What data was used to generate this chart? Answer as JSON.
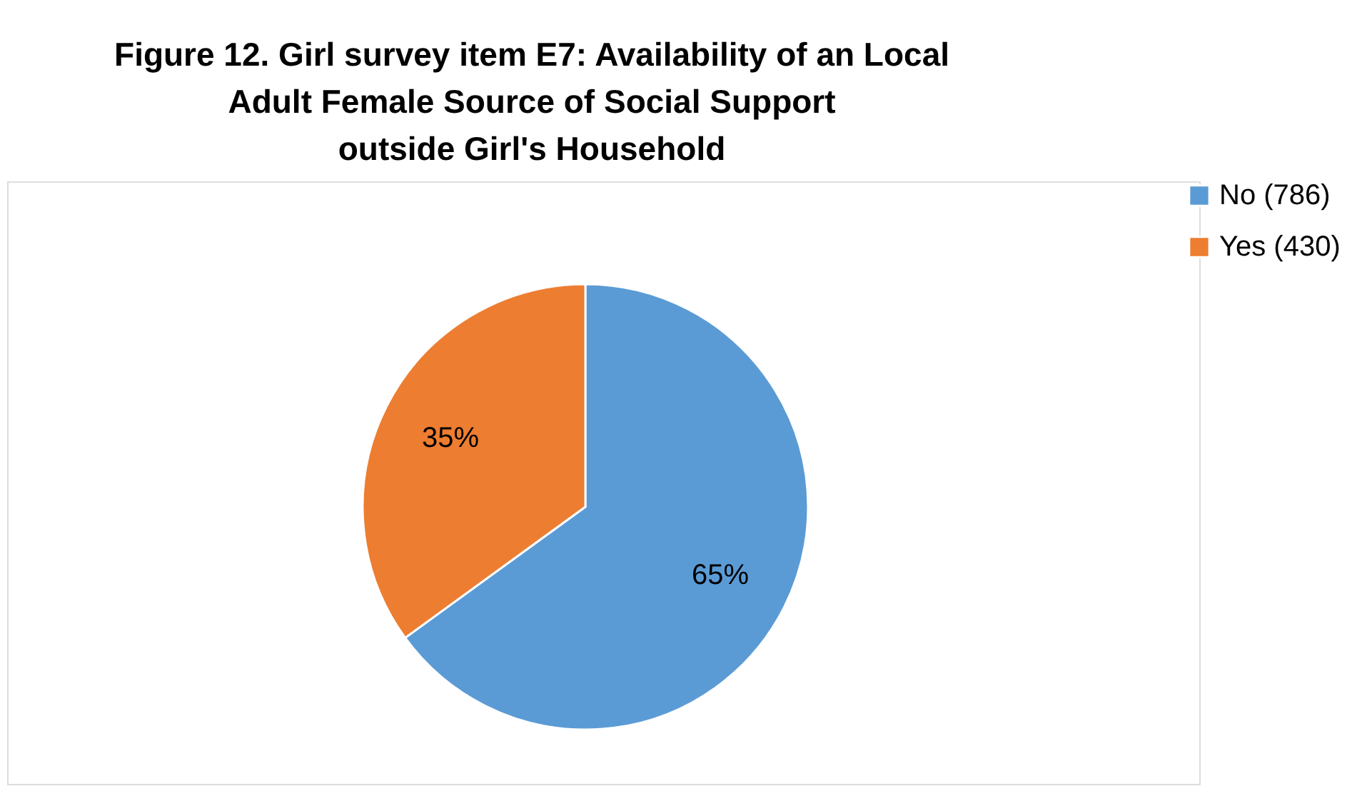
{
  "chart_data": {
    "type": "pie",
    "title": "Figure 12. Girl survey item E7: Availability of an Local\nAdult Female Source of Social Support\noutside Girl's Household",
    "categories": [
      "No (786)",
      "Yes (430)"
    ],
    "values": [
      65,
      35
    ],
    "colors": [
      "#5b9bd5",
      "#ed7d31"
    ],
    "value_labels": [
      "65%",
      "35%"
    ],
    "legend": "right"
  }
}
